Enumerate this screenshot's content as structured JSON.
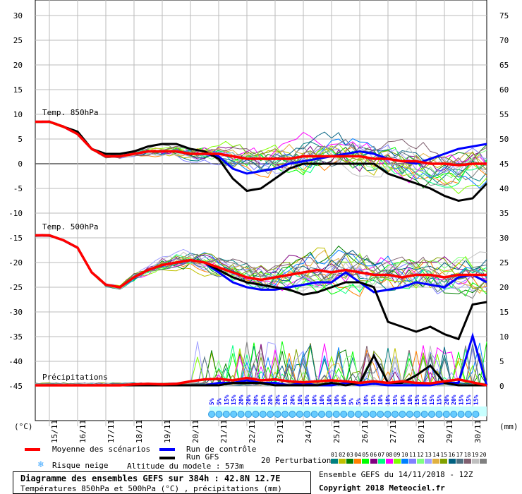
{
  "chart_data": {
    "type": "line",
    "title": "Diagramme des ensembles GEFS sur 384h : 42.8N 12.7E",
    "subtitle": "Températures 850hPa et 500hPa (°C) , précipitations (mm)",
    "left_axis": {
      "label": "(°C)",
      "range": [
        -45,
        30
      ],
      "ticks": [
        30,
        25,
        20,
        15,
        10,
        5,
        0,
        -5,
        -10,
        -15,
        -20,
        -25,
        -30,
        -35,
        -40,
        -45
      ]
    },
    "right_axis": {
      "label": "(mm)",
      "range": [
        0,
        75
      ],
      "ticks": [
        75,
        70,
        65,
        60,
        55,
        50,
        45,
        40,
        35,
        30,
        25,
        20,
        15,
        10,
        5,
        0
      ]
    },
    "x_hours_step": 12,
    "x_ticks": [
      "15/11",
      "16/11",
      "17/11",
      "18/11",
      "19/11",
      "20/11",
      "21/11",
      "22/11",
      "23/11",
      "24/11",
      "25/11",
      "26/11",
      "27/11",
      "28/11",
      "29/11",
      "30/11"
    ],
    "panel_labels": {
      "t850": "Temp. 850hPa",
      "t500": "Temp. 500hPa",
      "precip": "Précipitations"
    },
    "series": [
      {
        "name": "Moyenne des scénarios",
        "panel": "t850",
        "color": "#ff0000",
        "values": [
          8.5,
          8.5,
          7.5,
          6,
          3,
          1.5,
          1.5,
          2,
          2.5,
          2.5,
          2.5,
          2,
          2,
          2,
          1.5,
          1,
          1,
          1,
          1,
          1.5,
          1.5,
          1.5,
          1.5,
          1.5,
          1,
          1,
          0.5,
          0.5,
          0,
          0,
          -0.3,
          0,
          0
        ]
      },
      {
        "name": "Run de contrôle",
        "panel": "t850",
        "color": "#0000ff",
        "values": [
          8.5,
          8.5,
          7.5,
          6,
          3,
          1.5,
          1.5,
          2,
          2.5,
          2.5,
          2.5,
          2,
          2,
          1.5,
          -1,
          -2,
          -1.5,
          -1,
          0,
          0.5,
          1,
          1.5,
          2,
          2.5,
          2,
          1,
          0.5,
          0,
          1,
          2,
          3,
          3.5,
          4
        ]
      },
      {
        "name": "Run GFS",
        "panel": "t850",
        "color": "#000000",
        "values": [
          8.5,
          8.5,
          7.5,
          6.5,
          3,
          2,
          2,
          2.5,
          3.5,
          4,
          4,
          3,
          2.5,
          1,
          -3,
          -5.5,
          -5,
          -3,
          -1,
          0,
          0,
          0,
          0,
          0,
          0,
          -2,
          -3,
          -4,
          -5,
          -6.5,
          -7.5,
          -7,
          -4
        ]
      },
      {
        "name": "Moyenne des scénarios",
        "panel": "t500",
        "color": "#ff0000",
        "values": [
          -14.5,
          -14.5,
          -15.5,
          -17,
          -22,
          -24.5,
          -25,
          -23,
          -21.5,
          -20.5,
          -20,
          -19.5,
          -20,
          -21,
          -22,
          -23,
          -23.5,
          -23,
          -22.5,
          -22,
          -21.5,
          -22,
          -21.5,
          -22,
          -22.5,
          -22.5,
          -23,
          -22.5,
          -22.5,
          -23,
          -22.5,
          -22.5,
          -22.5
        ]
      },
      {
        "name": "Run de contrôle",
        "panel": "t500",
        "color": "#0000ff",
        "values": [
          -14.5,
          -14.5,
          -15.5,
          -17,
          -22,
          -24.5,
          -25,
          -23,
          -21.5,
          -20.5,
          -20,
          -19.5,
          -20,
          -22,
          -24,
          -25,
          -25.5,
          -25.5,
          -25,
          -24.5,
          -24,
          -24,
          -22,
          -24,
          -26,
          -25.5,
          -25,
          -24,
          -24.5,
          -25,
          -23,
          -22.5,
          -24
        ]
      },
      {
        "name": "Run GFS",
        "panel": "t500",
        "color": "#000000",
        "values": [
          -14.5,
          -14.5,
          -15.5,
          -17,
          -22,
          -24.5,
          -25,
          -23,
          -21.5,
          -20.5,
          -20,
          -19.5,
          -20,
          -21.5,
          -23,
          -24,
          -24.5,
          -25,
          -25.5,
          -26.5,
          -26,
          -25,
          -24,
          -24,
          -25,
          -32,
          -33,
          -34,
          -33,
          -34.5,
          -35.5,
          -28.5,
          -28
        ]
      },
      {
        "name": "Moyenne des scénarios",
        "panel": "precip",
        "color": "#ff0000",
        "values": [
          0,
          0,
          0,
          0,
          0,
          0,
          0,
          0.2,
          0.3,
          0.2,
          0.3,
          0.8,
          1.2,
          1.3,
          1,
          1.5,
          1,
          1.2,
          0.8,
          0.6,
          0.8,
          1,
          0.8,
          0.5,
          0.8,
          0.5,
          0.8,
          0.5,
          0.4,
          0.8,
          1.2,
          0.6,
          0
        ]
      },
      {
        "name": "Run de contrôle",
        "panel": "precip",
        "color": "#0000ff",
        "values": [
          0,
          0,
          0,
          0,
          0,
          0,
          0,
          0,
          0,
          0,
          0,
          0,
          0,
          0.5,
          0.5,
          1,
          0.5,
          0.5,
          0,
          0.5,
          0,
          0,
          0.5,
          0,
          0.3,
          0,
          0,
          0,
          0,
          0.5,
          0.5,
          10,
          0
        ]
      },
      {
        "name": "Run GFS",
        "panel": "precip",
        "color": "#000000",
        "values": [
          0,
          0,
          0,
          0,
          0,
          0,
          0,
          0,
          0,
          0,
          0,
          0,
          0,
          0,
          0.5,
          0.5,
          0.5,
          0,
          0,
          0,
          0,
          0.5,
          0,
          0.5,
          6,
          0.5,
          0.5,
          2,
          4,
          0.5,
          0,
          0,
          0
        ]
      }
    ],
    "snow_risk": [
      "5%",
      "5%",
      "15%",
      "15%",
      "20%",
      "20%",
      "20%",
      "15%",
      "20%",
      "20%",
      "15%",
      "20%",
      "10%",
      "10%",
      "10%",
      "10%",
      "10%",
      "10%",
      "10%",
      "5%",
      "5%",
      "10%",
      "15%",
      "10%",
      "10%",
      "15%",
      "10%",
      "10%",
      "15%",
      "15%",
      "15%",
      "15%",
      "20%",
      "20%",
      "15%",
      "15%",
      "15%"
    ]
  },
  "legend": {
    "mean": "Moyenne des scénarios",
    "control": "Run de contrôle",
    "gfs": "Run GFS",
    "snow": "Risque neige",
    "altitude": "Altitude du modele : 573m",
    "perturbations": "20 Perturbations",
    "colors": {
      "mean": "#ff0000",
      "control": "#0000ff",
      "gfs": "#000000"
    },
    "perturbation_ids": [
      "01",
      "02",
      "03",
      "04",
      "05",
      "06",
      "07",
      "08",
      "09",
      "10",
      "11",
      "12",
      "13",
      "14",
      "15",
      "16",
      "17",
      "18",
      "19",
      "20"
    ],
    "perturbation_colors": [
      "#008080",
      "#c0c000",
      "#008000",
      "#ff8000",
      "#00ff00",
      "#800080",
      "#00ff80",
      "#ff00ff",
      "#80ff00",
      "#0080ff",
      "#8080ff",
      "#80ff80",
      "#a0a0ff",
      "#e0b040",
      "#80a000",
      "#006080",
      "#507080",
      "#806070",
      "#c0c0c0",
      "#808080"
    ]
  },
  "footer": {
    "run": "Ensemble GEFS du 14/11/2018 - 12Z",
    "copyright": "Copyright 2018 Meteociel.fr"
  }
}
